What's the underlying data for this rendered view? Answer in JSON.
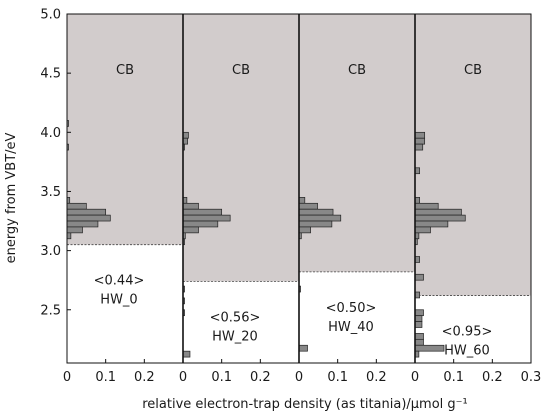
{
  "chart_data": {
    "type": "bar",
    "orientation": "horizontal",
    "xlabel": "relative electron-trap density (as titania)/µmol g⁻¹",
    "ylabel": "energy from VBT/eV",
    "ylim": [
      2.05,
      5.0
    ],
    "xlim": [
      0,
      0.3
    ],
    "bin_width_ev": 0.05,
    "y_ticks": [
      "2.5",
      "3.0",
      "3.5",
      "4.0",
      "4.5",
      "5.0"
    ],
    "x_ticks": [
      "0",
      "0.1",
      "0.2"
    ],
    "x_ticks_last": [
      "0",
      "0.1",
      "0.2",
      "0.3"
    ],
    "band_label": "CB",
    "colors": {
      "band": "#d2cccc",
      "bar": "#888888",
      "edge": "#222222"
    },
    "panels": [
      {
        "annotation": "<0.44>",
        "sample": "HW_0",
        "cb_bottom": 3.05,
        "bins": [
          {
            "e": 4.05,
            "v": 0.004
          },
          {
            "e": 3.85,
            "v": 0.004
          },
          {
            "e": 3.4,
            "v": 0.007
          },
          {
            "e": 3.35,
            "v": 0.05
          },
          {
            "e": 3.3,
            "v": 0.1
          },
          {
            "e": 3.25,
            "v": 0.112
          },
          {
            "e": 3.2,
            "v": 0.08
          },
          {
            "e": 3.15,
            "v": 0.04
          },
          {
            "e": 3.1,
            "v": 0.01
          }
        ]
      },
      {
        "annotation": "<0.56>",
        "sample": "HW_20",
        "cb_bottom": 2.74,
        "bins": [
          {
            "e": 3.95,
            "v": 0.014
          },
          {
            "e": 3.9,
            "v": 0.012
          },
          {
            "e": 3.85,
            "v": 0.004
          },
          {
            "e": 3.4,
            "v": 0.01
          },
          {
            "e": 3.35,
            "v": 0.04
          },
          {
            "e": 3.3,
            "v": 0.1
          },
          {
            "e": 3.25,
            "v": 0.122
          },
          {
            "e": 3.2,
            "v": 0.09
          },
          {
            "e": 3.15,
            "v": 0.04
          },
          {
            "e": 3.1,
            "v": 0.006
          },
          {
            "e": 3.05,
            "v": 0.004
          },
          {
            "e": 2.65,
            "v": 0.004
          },
          {
            "e": 2.55,
            "v": 0.004
          },
          {
            "e": 2.45,
            "v": 0.004
          },
          {
            "e": 2.1,
            "v": 0.018
          }
        ]
      },
      {
        "annotation": "<0.50>",
        "sample": "HW_40",
        "cb_bottom": 2.82,
        "bins": [
          {
            "e": 3.4,
            "v": 0.015
          },
          {
            "e": 3.35,
            "v": 0.048
          },
          {
            "e": 3.3,
            "v": 0.088
          },
          {
            "e": 3.25,
            "v": 0.108
          },
          {
            "e": 3.2,
            "v": 0.085
          },
          {
            "e": 3.15,
            "v": 0.03
          },
          {
            "e": 3.1,
            "v": 0.006
          },
          {
            "e": 2.65,
            "v": 0.004
          },
          {
            "e": 2.15,
            "v": 0.022
          }
        ]
      },
      {
        "annotation": "<0.95>",
        "sample": "HW_60",
        "cb_bottom": 2.62,
        "bins": [
          {
            "e": 3.95,
            "v": 0.025
          },
          {
            "e": 3.9,
            "v": 0.025
          },
          {
            "e": 3.85,
            "v": 0.02
          },
          {
            "e": 3.65,
            "v": 0.012
          },
          {
            "e": 3.4,
            "v": 0.012
          },
          {
            "e": 3.35,
            "v": 0.06
          },
          {
            "e": 3.3,
            "v": 0.12
          },
          {
            "e": 3.25,
            "v": 0.13
          },
          {
            "e": 3.2,
            "v": 0.085
          },
          {
            "e": 3.15,
            "v": 0.04
          },
          {
            "e": 3.1,
            "v": 0.01
          },
          {
            "e": 3.05,
            "v": 0.006
          },
          {
            "e": 2.9,
            "v": 0.012
          },
          {
            "e": 2.75,
            "v": 0.022
          },
          {
            "e": 2.6,
            "v": 0.012
          },
          {
            "e": 2.45,
            "v": 0.022
          },
          {
            "e": 2.4,
            "v": 0.018
          },
          {
            "e": 2.35,
            "v": 0.018
          },
          {
            "e": 2.25,
            "v": 0.022
          },
          {
            "e": 2.2,
            "v": 0.022
          },
          {
            "e": 2.15,
            "v": 0.075
          },
          {
            "e": 2.1,
            "v": 0.01
          }
        ]
      }
    ]
  }
}
